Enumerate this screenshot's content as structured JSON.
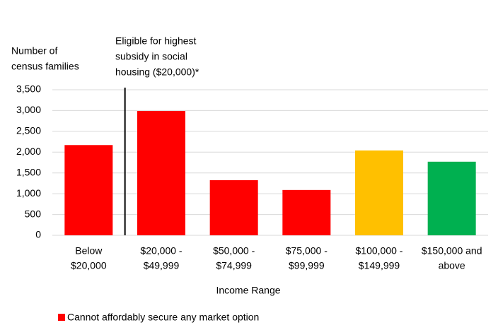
{
  "chart_data": {
    "type": "bar",
    "y_label": [
      "Number of",
      "census families"
    ],
    "x_label": "Income Range",
    "annotation": [
      "Eligible for highest",
      "subsidy in social",
      "housing ($20,000)*"
    ],
    "categories": [
      [
        "Below",
        "$20,000"
      ],
      [
        "$20,000 -",
        "$49,999"
      ],
      [
        "$50,000 -",
        "$74,999"
      ],
      [
        "$75,000 -",
        "$99,999"
      ],
      [
        "$100,000 -",
        "$149,999"
      ],
      [
        "$150,000 and",
        "above"
      ]
    ],
    "values": [
      2170,
      2990,
      1325,
      1090,
      2040,
      1770
    ],
    "colors": [
      "#ff0000",
      "#ff0000",
      "#ff0000",
      "#ff0000",
      "#ffc000",
      "#00b050"
    ],
    "ylim": [
      0,
      3500
    ],
    "yticks": [
      0,
      500,
      {
        "value": 1000,
        "label": "1,000"
      },
      {
        "value": 1500,
        "label": "1,500"
      },
      {
        "value": 2000,
        "label": "2,000"
      },
      {
        "value": 2500,
        "label": "2,500"
      },
      {
        "value": 3000,
        "label": "3,000"
      },
      {
        "value": 3500,
        "label": "3,500"
      }
    ],
    "grid": true,
    "legend": [
      {
        "name": "Cannot affordably secure any market option",
        "color": "#ff0000"
      }
    ]
  }
}
